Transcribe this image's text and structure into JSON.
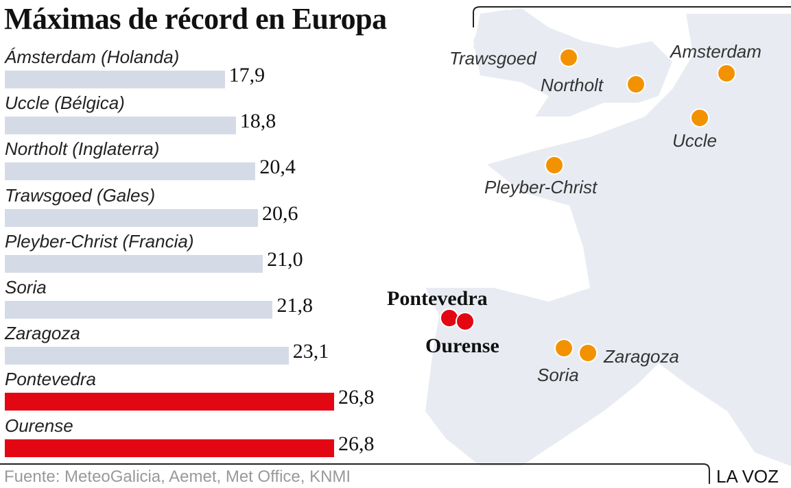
{
  "chart_data": {
    "type": "bar",
    "title": "Máximas de récord en Europa",
    "categories": [
      "Ámsterdam (Holanda)",
      "Uccle (Bélgica)",
      "Northolt (Inglaterra)",
      "Trawsgoed (Gales)",
      "Pleyber-Christ (Francia)",
      "Soria",
      "Zaragoza",
      "Pontevedra",
      "Ourense"
    ],
    "values": [
      17.9,
      18.8,
      20.4,
      20.6,
      21.0,
      21.8,
      23.1,
      26.8,
      26.8
    ],
    "value_labels": [
      "17,9",
      "18,8",
      "20,4",
      "20,6",
      "21,0",
      "21,8",
      "23,1",
      "26,8",
      "26,8"
    ],
    "highlight": [
      false,
      false,
      false,
      false,
      false,
      false,
      false,
      true,
      true
    ],
    "xlim": [
      0,
      26.8
    ],
    "colors": {
      "default": "#d5dbe6",
      "highlight": "#e30613"
    }
  },
  "map": {
    "points": [
      {
        "name": "Trawsgoed",
        "color": "#f39200"
      },
      {
        "name": "Northolt",
        "color": "#f39200"
      },
      {
        "name": "Amsterdam",
        "color": "#f39200"
      },
      {
        "name": "Uccle",
        "color": "#f39200"
      },
      {
        "name": "Pleyber-Christ",
        "color": "#f39200"
      },
      {
        "name": "Pontevedra",
        "color": "#e30613"
      },
      {
        "name": "Ourense",
        "color": "#e30613"
      },
      {
        "name": "Soria",
        "color": "#f39200"
      },
      {
        "name": "Zaragoza",
        "color": "#f39200"
      }
    ]
  },
  "footer": {
    "source": "Fuente: MeteoGalicia, Aemet, Met Office, KNMI",
    "brand": "LA VOZ"
  }
}
